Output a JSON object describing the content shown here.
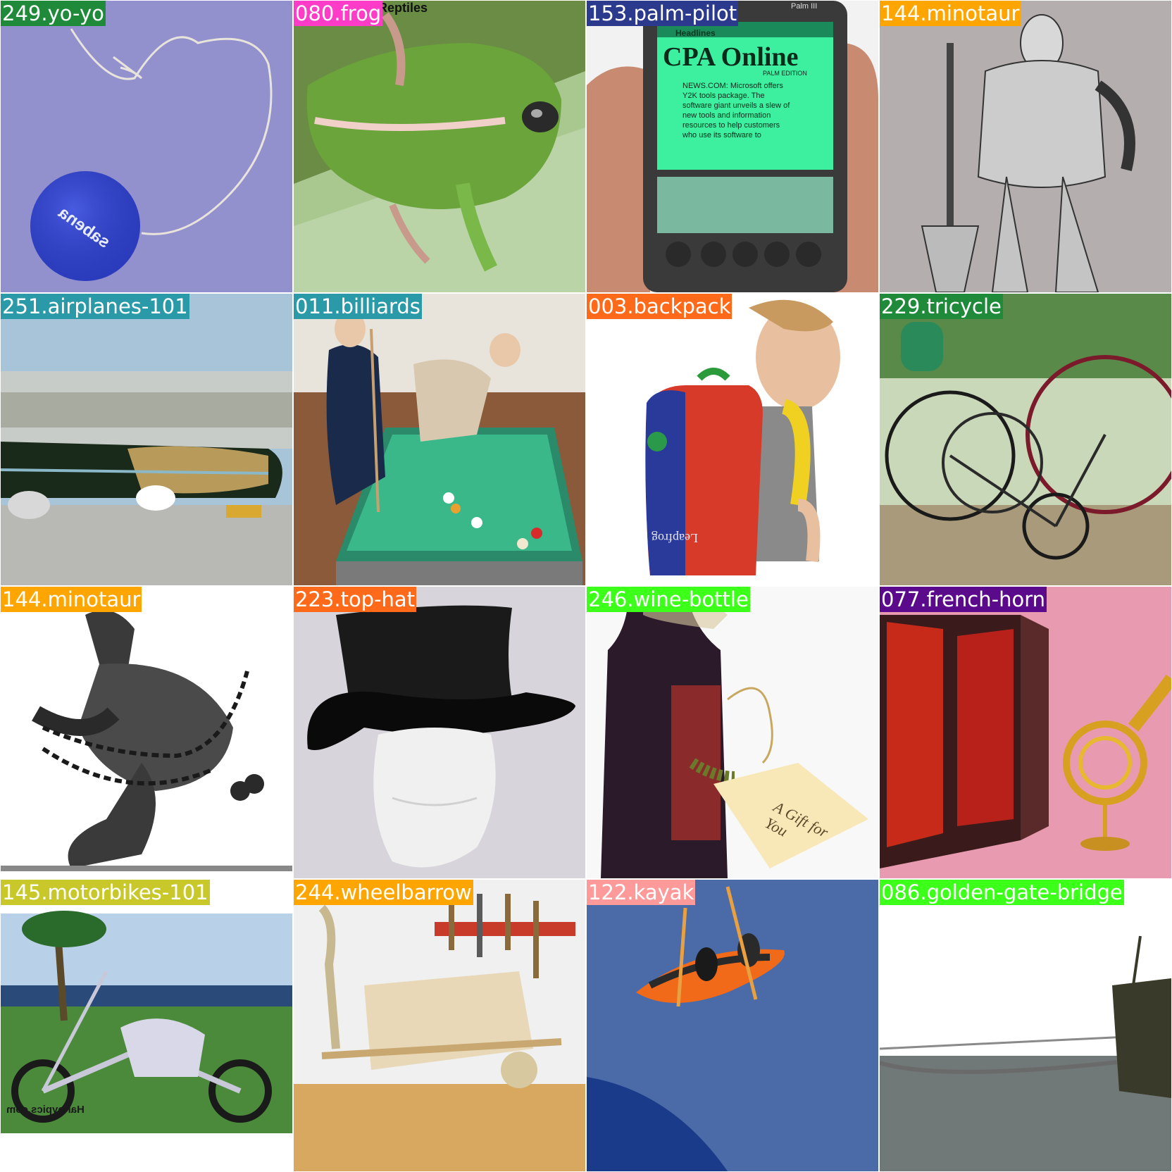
{
  "tiles": [
    {
      "label": "249.yo-yo",
      "color": "#1f8a3a",
      "yoyo_text": "sabena"
    },
    {
      "label": "080.frog",
      "color": "#ff3cc8",
      "caption": "Reptiles"
    },
    {
      "label": "153.palm-pilot",
      "color": "#2b3a8c",
      "screen_title": "CPA Online",
      "screen_sub": "PALM EDITION",
      "screen_header": "Headlines",
      "screen_body": "NEWS.COM: Microsoft offers Y2K tools package. The software giant unveils a slew of new tools and information resources to help customers who use its software to",
      "brand": "Palm III"
    },
    {
      "label": "144.minotaur",
      "color": "#ffa500"
    },
    {
      "label": "251.airplanes-101",
      "color": "#2a9aa8"
    },
    {
      "label": "011.billiards",
      "color": "#2a9aa8"
    },
    {
      "label": "003.backpack",
      "color": "#ff6a1a",
      "bag_text": "Leapfrog"
    },
    {
      "label": "229.tricycle",
      "color": "#1f8a3a"
    },
    {
      "label": "144.minotaur",
      "color": "#ffa500"
    },
    {
      "label": "223.top-hat",
      "color": "#ff6a1a"
    },
    {
      "label": "246.wine-bottle",
      "color": "#3cff1a",
      "tag_text": "A Gift for You"
    },
    {
      "label": "077.french-horn",
      "color": "#5a0a8a"
    },
    {
      "label": "145.motorbikes-101",
      "color": "#c8c82a",
      "watermark": "Harleypics.com"
    },
    {
      "label": "244.wheelbarrow",
      "color": "#ffa500"
    },
    {
      "label": "122.kayak",
      "color": "#ff9a9a"
    },
    {
      "label": "086.golden-gate-bridge",
      "color": "#3cff1a"
    }
  ]
}
